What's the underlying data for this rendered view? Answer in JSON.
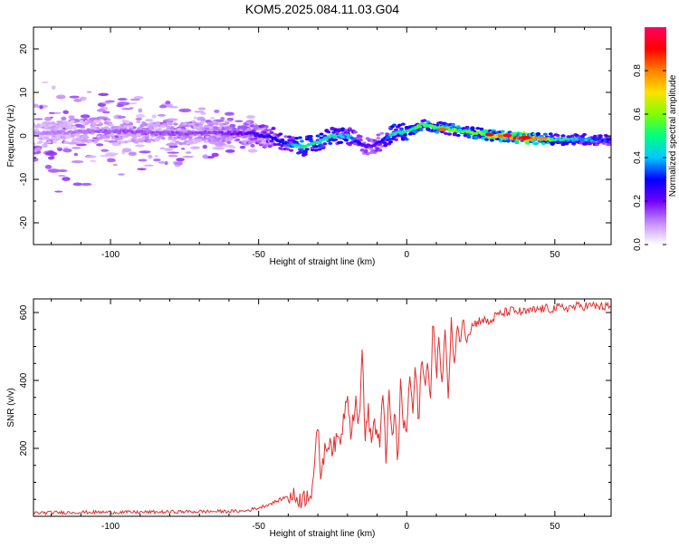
{
  "title": "KOM5.2025.084.11.03.G04",
  "chart_data": [
    {
      "type": "heatmap",
      "xlabel": "Height of straight line (km)",
      "ylabel": "Frequency (Hz)",
      "xlim": [
        -126,
        69
      ],
      "ylim": [
        -25,
        25
      ],
      "x_ticks": [
        -100,
        -50,
        0,
        50
      ],
      "y_ticks": [
        -20,
        -10,
        0,
        10,
        20
      ],
      "x_tick_labels": [
        "-100",
        "-50",
        "0",
        "50"
      ],
      "y_tick_labels": [
        "-20",
        "-10",
        "0",
        "10",
        "20"
      ],
      "colorbar": {
        "label": "Normalized spectral amplitude",
        "range": [
          0,
          1
        ],
        "ticks": [
          "0.0",
          "0.2",
          "0.4",
          "0.6",
          "0.8"
        ],
        "colors": [
          "#ffffff",
          "#c58cff",
          "#7000ff",
          "#0000ff",
          "#00c8ff",
          "#00ff80",
          "#80ff00",
          "#ffe000",
          "#ff8000",
          "#ff0000",
          "#ff0060"
        ]
      },
      "ridge": {
        "x": [
          -126,
          -110,
          -95,
          -80,
          -65,
          -52,
          -45,
          -40,
          -35,
          -30,
          -25,
          -20,
          -15,
          -12,
          -8,
          -5,
          0,
          5,
          10,
          15,
          20,
          25,
          30,
          40,
          50,
          60,
          69
        ],
        "y": [
          0.5,
          1.0,
          1.0,
          0.5,
          0.8,
          0.5,
          -0.5,
          -2.0,
          -2.5,
          -1.5,
          0,
          0,
          -2.0,
          -2.5,
          -1.0,
          0.5,
          1.0,
          2.5,
          2.0,
          1.5,
          1.0,
          0.5,
          0,
          -0.5,
          -0.8,
          -0.8,
          -1.0
        ],
        "amplitude": [
          0.1,
          0.12,
          0.15,
          0.15,
          0.15,
          0.22,
          0.3,
          0.35,
          0.5,
          0.45,
          0.45,
          0.4,
          0.25,
          0.2,
          0.3,
          0.45,
          0.5,
          0.55,
          0.55,
          0.55,
          0.55,
          0.6,
          0.75,
          0.9,
          0.5,
          0.4,
          0.3
        ]
      }
    },
    {
      "type": "line",
      "xlabel": "Height of straight line (km)",
      "ylabel": "SNR (v/v)",
      "xlim": [
        -126,
        69
      ],
      "ylim": [
        0,
        640
      ],
      "x_ticks": [
        -100,
        -50,
        0,
        50
      ],
      "y_ticks": [
        200,
        400,
        600
      ],
      "x_tick_labels": [
        "-100",
        "-50",
        "0",
        "50"
      ],
      "y_tick_labels": [
        "200",
        "400",
        "600"
      ],
      "line_color": "#e03030",
      "series": [
        {
          "x": [
            -126,
            -110,
            -90,
            -70,
            -55,
            -50,
            -45,
            -40,
            -35,
            -32,
            -30,
            -29,
            -28,
            -26,
            -25,
            -22,
            -20,
            -19,
            -18,
            -17,
            -16,
            -15,
            -14,
            -13,
            -12,
            -11,
            -10,
            -9,
            -8,
            -7,
            -6,
            -5,
            -4,
            -3,
            -2,
            -1,
            0,
            1,
            2,
            3,
            4,
            5,
            6,
            7,
            8,
            9,
            10,
            11,
            12,
            13,
            14,
            15,
            16,
            17,
            18,
            19,
            20,
            22,
            25,
            28,
            30,
            35,
            40,
            45,
            50,
            55,
            60,
            65,
            69
          ],
          "y": [
            10,
            12,
            12,
            14,
            15,
            25,
            40,
            60,
            50,
            80,
            260,
            120,
            180,
            230,
            200,
            240,
            380,
            250,
            300,
            340,
            260,
            500,
            230,
            310,
            220,
            280,
            240,
            200,
            380,
            180,
            350,
            230,
            300,
            160,
            400,
            260,
            250,
            420,
            300,
            440,
            280,
            460,
            390,
            470,
            320,
            600,
            420,
            520,
            380,
            560,
            320,
            600,
            430,
            570,
            500,
            600,
            520,
            560,
            580,
            570,
            590,
            605,
            600,
            610,
            612,
            615,
            620,
            618,
            615
          ]
        }
      ]
    }
  ]
}
